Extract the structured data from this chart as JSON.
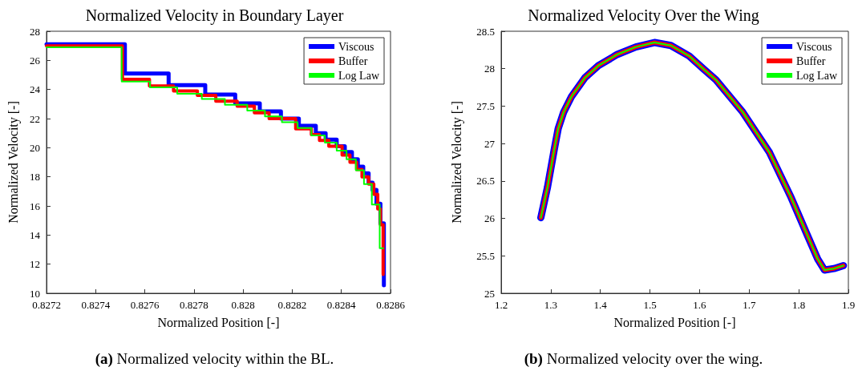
{
  "chart_data": [
    {
      "type": "step",
      "title": "Normalized Velocity in Boundary Layer",
      "xlabel": "Normalized Position [-]",
      "ylabel": "Normalized Velocity [-]",
      "annotations": [
        "(a) Normalized velocity within the BL."
      ],
      "xlim": [
        0.8272,
        0.8286
      ],
      "xticks": [
        0.8272,
        0.8274,
        0.8276,
        0.8278,
        0.828,
        0.8282,
        0.8284,
        0.8286
      ],
      "ylim": [
        10,
        28
      ],
      "yticks": [
        10,
        12,
        14,
        16,
        18,
        20,
        22,
        24,
        26,
        28
      ],
      "grid": false,
      "legend": "top right",
      "marker": "none",
      "line_style": "solid",
      "series": [
        {
          "name": "Viscous",
          "color": "#0000ff",
          "x": [
            0.8272,
            0.827519,
            0.827697,
            0.827846,
            0.827968,
            0.828068,
            0.828154,
            0.828227,
            0.828296,
            0.828336,
            0.828381,
            0.828414,
            0.828443,
            0.828467,
            0.828489,
            0.828511,
            0.828527,
            0.828543,
            0.828559,
            0.828573
          ],
          "values": [
            27.1,
            25.1,
            24.3,
            23.65,
            23.05,
            22.5,
            22.0,
            21.5,
            21.0,
            20.55,
            20.1,
            19.7,
            19.2,
            18.7,
            18.25,
            17.6,
            17.1,
            16.15,
            14.8,
            10.55
          ]
        },
        {
          "name": "Buffer",
          "color": "#ff0000",
          "x": [
            0.8272,
            0.827509,
            0.827619,
            0.827717,
            0.827814,
            0.827889,
            0.827976,
            0.828046,
            0.828106,
            0.828214,
            0.828278,
            0.828311,
            0.828349,
            0.828403,
            0.828435,
            0.828462,
            0.828484,
            0.828511,
            0.828532,
            0.828548,
            0.828559,
            0.82857
          ],
          "values": [
            27.0,
            24.7,
            24.25,
            23.9,
            23.6,
            23.2,
            22.85,
            22.4,
            22.0,
            21.3,
            20.9,
            20.5,
            20.1,
            19.5,
            19.0,
            18.5,
            18.0,
            17.5,
            16.8,
            15.8,
            14.7,
            11.3
          ]
        },
        {
          "name": "Log Law",
          "color": "#00ff00",
          "x": [
            0.8272,
            0.827506,
            0.827621,
            0.827732,
            0.827832,
            0.827926,
            0.828017,
            0.828089,
            0.828158,
            0.828222,
            0.828278,
            0.828333,
            0.828381,
            0.828421,
            0.828459,
            0.828492,
            0.828524,
            0.828556,
            0.82857
          ],
          "values": [
            26.9,
            24.55,
            24.15,
            23.7,
            23.35,
            22.95,
            22.55,
            22.15,
            21.75,
            21.35,
            20.85,
            20.35,
            19.8,
            19.2,
            18.45,
            17.5,
            16.1,
            13.1,
            13.1
          ]
        }
      ]
    },
    {
      "type": "line",
      "title": "Normalized Velocity Over the Wing",
      "xlabel": "Normalized Position [-]",
      "ylabel": "Normalized Velocity [-]",
      "annotations": [
        "(b) Normalized velocity over the wing."
      ],
      "xlim": [
        1.2,
        1.9
      ],
      "xticks": [
        1.2,
        1.3,
        1.4,
        1.5,
        1.6,
        1.7,
        1.8,
        1.9
      ],
      "ylim": [
        25,
        28.5
      ],
      "yticks": [
        25,
        25.5,
        26,
        26.5,
        27,
        27.5,
        28,
        28.5
      ],
      "grid": false,
      "legend": "top right",
      "marker": "none",
      "line_style": "solid",
      "series": [
        {
          "name": "Viscous",
          "color": "#0000ff",
          "x": [
            1.28,
            1.2935,
            1.307,
            1.315,
            1.326,
            1.342,
            1.369,
            1.396,
            1.434,
            1.4715,
            1.509,
            1.542,
            1.579,
            1.609,
            1.633,
            1.687,
            1.741,
            1.7845,
            1.817,
            1.838,
            1.852,
            1.871,
            1.89
          ],
          "values": [
            26.01,
            26.42,
            26.92,
            27.2,
            27.42,
            27.63,
            27.88,
            28.04,
            28.19,
            28.29,
            28.35,
            28.31,
            28.17,
            27.99,
            27.85,
            27.42,
            26.88,
            26.28,
            25.78,
            25.46,
            25.31,
            25.33,
            25.37
          ]
        },
        {
          "name": "Buffer",
          "color": "#ff0000",
          "x": [
            1.28,
            1.2935,
            1.307,
            1.315,
            1.326,
            1.342,
            1.369,
            1.396,
            1.434,
            1.4715,
            1.509,
            1.542,
            1.579,
            1.609,
            1.633,
            1.687,
            1.741,
            1.7845,
            1.817,
            1.838,
            1.852,
            1.871,
            1.89
          ],
          "values": [
            26.01,
            26.42,
            26.92,
            27.2,
            27.42,
            27.63,
            27.88,
            28.04,
            28.19,
            28.29,
            28.35,
            28.31,
            28.17,
            27.99,
            27.85,
            27.42,
            26.88,
            26.28,
            25.78,
            25.46,
            25.31,
            25.33,
            25.37
          ]
        },
        {
          "name": "Log Law",
          "color": "#00ff00",
          "x": [
            1.28,
            1.2935,
            1.307,
            1.315,
            1.326,
            1.342,
            1.369,
            1.396,
            1.434,
            1.4715,
            1.509,
            1.542,
            1.579,
            1.609,
            1.633,
            1.687,
            1.741,
            1.7845,
            1.817,
            1.838,
            1.852,
            1.871,
            1.89
          ],
          "values": [
            26.01,
            26.42,
            26.92,
            27.2,
            27.42,
            27.63,
            27.88,
            28.04,
            28.19,
            28.29,
            28.35,
            28.31,
            28.17,
            27.99,
            27.85,
            27.42,
            26.88,
            26.28,
            25.78,
            25.46,
            25.31,
            25.33,
            25.37
          ]
        }
      ]
    }
  ]
}
